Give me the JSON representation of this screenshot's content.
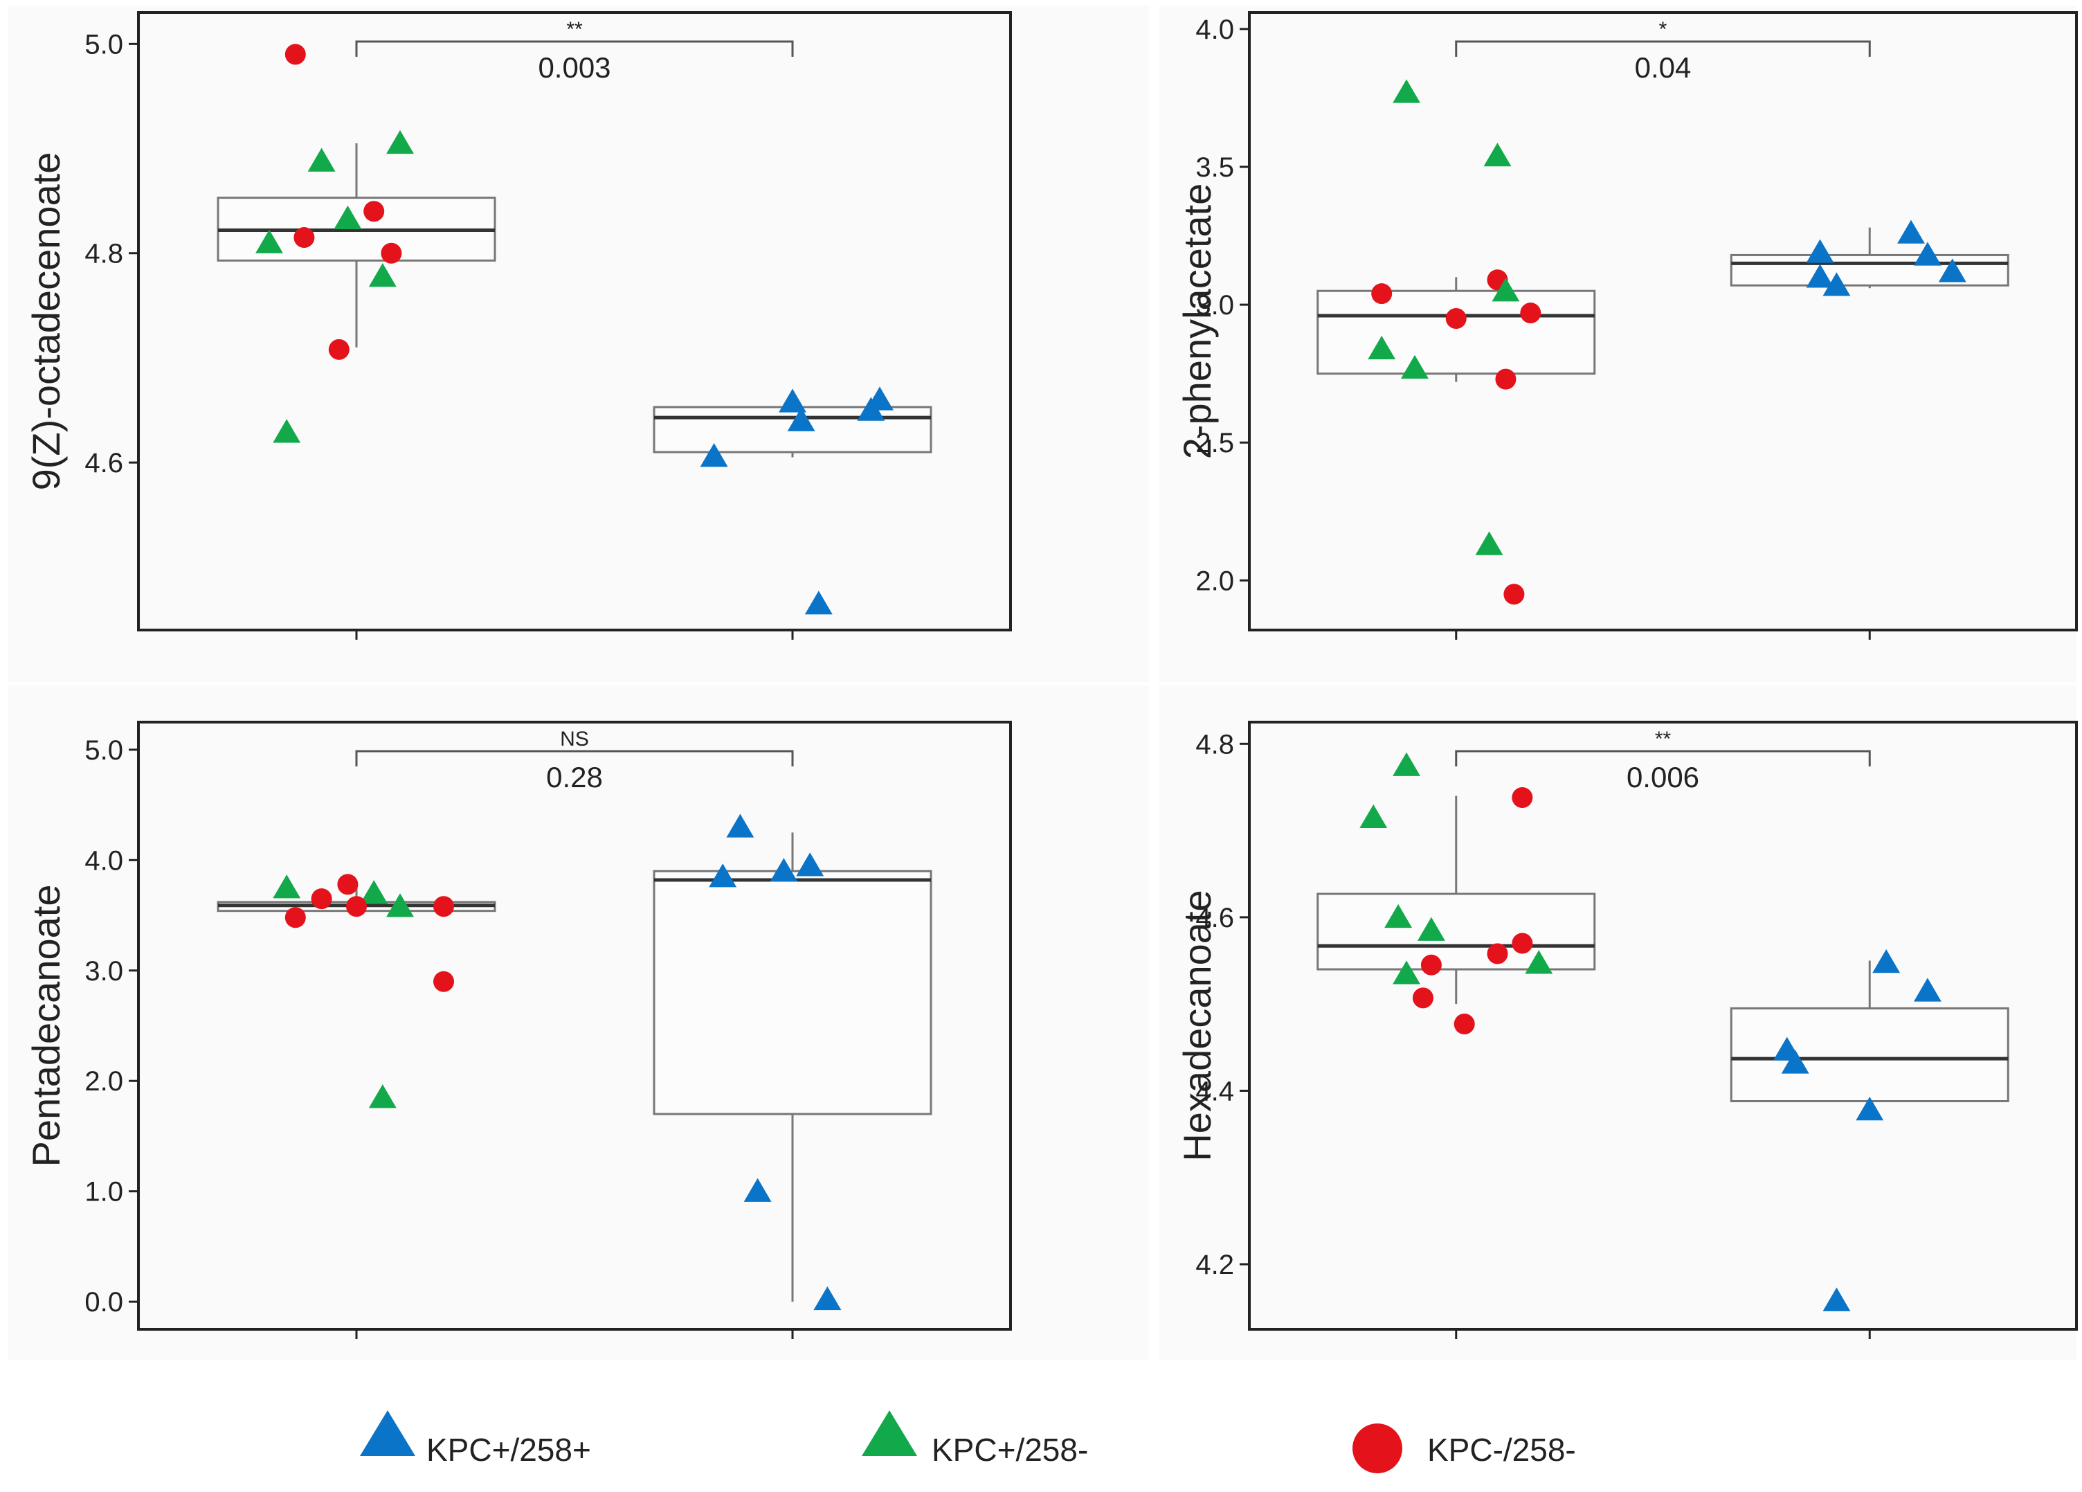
{
  "colors": {
    "KPC+/258+": "#0a74c8",
    "KPC+/258-": "#12a94b",
    "KPC-/258-": "#e3121b",
    "axis": "#222222",
    "box": "#777777",
    "median": "#333333",
    "panel_bg": "#fafafa"
  },
  "legend": {
    "items": [
      {
        "label": "KPC+/258+",
        "shape": "triangle",
        "color": "#0a74c8"
      },
      {
        "label": "KPC+/258-",
        "shape": "triangle",
        "color": "#12a94b"
      },
      {
        "label": "KPC-/258-",
        "shape": "circle",
        "color": "#e3121b"
      }
    ]
  },
  "chart_data": [
    {
      "type": "box-scatter",
      "ylabel": "9(Z)-octadecenoate",
      "ylim": [
        4.44,
        5.03
      ],
      "yticks": [
        4.6,
        4.8,
        5.0
      ],
      "tick_labels": [
        "4.6",
        "4.8",
        "5.0"
      ],
      "comparison": {
        "p_value": "0.003",
        "significance": "**"
      },
      "boxes": [
        {
          "group": 1,
          "q1": 4.793,
          "median": 4.822,
          "q3": 4.853,
          "whisker_low": 4.71,
          "whisker_high": 4.905
        },
        {
          "group": 2,
          "q1": 4.61,
          "median": 4.643,
          "q3": 4.653,
          "whisker_low": 4.605,
          "whisker_high": 4.66
        }
      ],
      "points": [
        {
          "group": 1,
          "jitter": -0.07,
          "y": 4.99,
          "class": "KPC-/258-"
        },
        {
          "group": 1,
          "jitter": 0.05,
          "y": 4.905,
          "class": "KPC+/258-"
        },
        {
          "group": 1,
          "jitter": -0.04,
          "y": 4.888,
          "class": "KPC+/258-"
        },
        {
          "group": 1,
          "jitter": 0.02,
          "y": 4.84,
          "class": "KPC-/258-"
        },
        {
          "group": 1,
          "jitter": -0.01,
          "y": 4.833,
          "class": "KPC+/258-"
        },
        {
          "group": 1,
          "jitter": -0.06,
          "y": 4.815,
          "class": "KPC-/258-"
        },
        {
          "group": 1,
          "jitter": -0.1,
          "y": 4.81,
          "class": "KPC+/258-"
        },
        {
          "group": 1,
          "jitter": 0.04,
          "y": 4.8,
          "class": "KPC-/258-"
        },
        {
          "group": 1,
          "jitter": 0.03,
          "y": 4.778,
          "class": "KPC+/258-"
        },
        {
          "group": 1,
          "jitter": -0.02,
          "y": 4.708,
          "class": "KPC-/258-"
        },
        {
          "group": 1,
          "jitter": -0.08,
          "y": 4.629,
          "class": "KPC+/258-"
        },
        {
          "group": 2,
          "jitter": 0.1,
          "y": 4.66,
          "class": "KPC+/258+"
        },
        {
          "group": 2,
          "jitter": 0.0,
          "y": 4.658,
          "class": "KPC+/258+"
        },
        {
          "group": 2,
          "jitter": 0.09,
          "y": 4.65,
          "class": "KPC+/258+"
        },
        {
          "group": 2,
          "jitter": 0.01,
          "y": 4.64,
          "class": "KPC+/258+"
        },
        {
          "group": 2,
          "jitter": -0.09,
          "y": 4.606,
          "class": "KPC+/258+"
        },
        {
          "group": 2,
          "jitter": 0.03,
          "y": 4.465,
          "class": "KPC+/258+"
        }
      ]
    },
    {
      "type": "box-scatter",
      "ylabel": "2-phenylacetate",
      "ylim": [
        1.82,
        4.06
      ],
      "yticks": [
        2.0,
        2.5,
        3.0,
        3.5,
        4.0
      ],
      "tick_labels": [
        "2.0",
        "2.5",
        "3.0",
        "3.5",
        "4.0"
      ],
      "comparison": {
        "p_value": "0.04",
        "significance": "*"
      },
      "boxes": [
        {
          "group": 1,
          "q1": 2.75,
          "median": 2.96,
          "q3": 3.05,
          "whisker_low": 2.72,
          "whisker_high": 3.1
        },
        {
          "group": 2,
          "q1": 3.07,
          "median": 3.15,
          "q3": 3.18,
          "whisker_low": 3.06,
          "whisker_high": 3.28
        }
      ],
      "points": [
        {
          "group": 1,
          "jitter": -0.06,
          "y": 3.77,
          "class": "KPC+/258-"
        },
        {
          "group": 1,
          "jitter": 0.05,
          "y": 3.54,
          "class": "KPC+/258-"
        },
        {
          "group": 1,
          "jitter": 0.05,
          "y": 3.09,
          "class": "KPC-/258-"
        },
        {
          "group": 1,
          "jitter": 0.06,
          "y": 3.05,
          "class": "KPC+/258-"
        },
        {
          "group": 1,
          "jitter": -0.09,
          "y": 3.04,
          "class": "KPC-/258-"
        },
        {
          "group": 1,
          "jitter": 0.09,
          "y": 2.97,
          "class": "KPC-/258-"
        },
        {
          "group": 1,
          "jitter": 0.0,
          "y": 2.95,
          "class": "KPC-/258-"
        },
        {
          "group": 1,
          "jitter": -0.09,
          "y": 2.84,
          "class": "KPC+/258-"
        },
        {
          "group": 1,
          "jitter": -0.05,
          "y": 2.77,
          "class": "KPC+/258-"
        },
        {
          "group": 1,
          "jitter": 0.06,
          "y": 2.73,
          "class": "KPC-/258-"
        },
        {
          "group": 1,
          "jitter": 0.04,
          "y": 2.13,
          "class": "KPC+/258-"
        },
        {
          "group": 1,
          "jitter": 0.07,
          "y": 1.95,
          "class": "KPC-/258-"
        },
        {
          "group": 2,
          "jitter": 0.05,
          "y": 3.26,
          "class": "KPC+/258+"
        },
        {
          "group": 2,
          "jitter": -0.06,
          "y": 3.19,
          "class": "KPC+/258+"
        },
        {
          "group": 2,
          "jitter": 0.07,
          "y": 3.18,
          "class": "KPC+/258+"
        },
        {
          "group": 2,
          "jitter": 0.1,
          "y": 3.12,
          "class": "KPC+/258+"
        },
        {
          "group": 2,
          "jitter": -0.06,
          "y": 3.1,
          "class": "KPC+/258+"
        },
        {
          "group": 2,
          "jitter": -0.04,
          "y": 3.07,
          "class": "KPC+/258+"
        }
      ]
    },
    {
      "type": "box-scatter",
      "ylabel": "Pentadecanoate",
      "ylim": [
        -0.25,
        5.25
      ],
      "yticks": [
        0.0,
        1.0,
        2.0,
        3.0,
        4.0,
        5.0
      ],
      "tick_labels": [
        "0.0",
        "1.0",
        "2.0",
        "3.0",
        "4.0",
        "5.0"
      ],
      "comparison": {
        "p_value": "0.28",
        "significance": "NS"
      },
      "boxes": [
        {
          "group": 1,
          "q1": 3.54,
          "median": 3.59,
          "q3": 3.62,
          "whisker_low": 3.5,
          "whisker_high": 3.75
        },
        {
          "group": 2,
          "q1": 1.7,
          "median": 3.82,
          "q3": 3.9,
          "whisker_low": 0.0,
          "whisker_high": 4.25
        }
      ],
      "points": [
        {
          "group": 1,
          "jitter": -0.08,
          "y": 3.75,
          "class": "KPC+/258-"
        },
        {
          "group": 1,
          "jitter": -0.01,
          "y": 3.78,
          "class": "KPC-/258-"
        },
        {
          "group": 1,
          "jitter": 0.02,
          "y": 3.7,
          "class": "KPC+/258-"
        },
        {
          "group": 1,
          "jitter": -0.04,
          "y": 3.65,
          "class": "KPC-/258-"
        },
        {
          "group": 1,
          "jitter": 0.0,
          "y": 3.58,
          "class": "KPC-/258-"
        },
        {
          "group": 1,
          "jitter": 0.05,
          "y": 3.58,
          "class": "KPC+/258-"
        },
        {
          "group": 1,
          "jitter": 0.1,
          "y": 3.58,
          "class": "KPC-/258-"
        },
        {
          "group": 1,
          "jitter": -0.07,
          "y": 3.48,
          "class": "KPC-/258-"
        },
        {
          "group": 1,
          "jitter": 0.1,
          "y": 2.9,
          "class": "KPC-/258-"
        },
        {
          "group": 1,
          "jitter": 0.03,
          "y": 1.85,
          "class": "KPC+/258-"
        },
        {
          "group": 2,
          "jitter": -0.06,
          "y": 4.3,
          "class": "KPC+/258+"
        },
        {
          "group": 2,
          "jitter": 0.02,
          "y": 3.95,
          "class": "KPC+/258+"
        },
        {
          "group": 2,
          "jitter": -0.01,
          "y": 3.9,
          "class": "KPC+/258+"
        },
        {
          "group": 2,
          "jitter": -0.08,
          "y": 3.85,
          "class": "KPC+/258+"
        },
        {
          "group": 2,
          "jitter": -0.04,
          "y": 1.0,
          "class": "KPC+/258+"
        },
        {
          "group": 2,
          "jitter": 0.04,
          "y": 0.02,
          "class": "KPC+/258+"
        }
      ]
    },
    {
      "type": "box-scatter",
      "ylabel": "Hexadecanoate",
      "ylim": [
        4.125,
        4.825
      ],
      "yticks": [
        4.2,
        4.4,
        4.6,
        4.8
      ],
      "tick_labels": [
        "4.2",
        "4.4",
        "4.6",
        "4.8"
      ],
      "comparison": {
        "p_value": "0.006",
        "significance": "**"
      },
      "boxes": [
        {
          "group": 1,
          "q1": 4.54,
          "median": 4.567,
          "q3": 4.627,
          "whisker_low": 4.5,
          "whisker_high": 4.74
        },
        {
          "group": 2,
          "q1": 4.388,
          "median": 4.437,
          "q3": 4.495,
          "whisker_low": 4.38,
          "whisker_high": 4.55
        }
      ],
      "points": [
        {
          "group": 1,
          "jitter": -0.06,
          "y": 4.775,
          "class": "KPC+/258-"
        },
        {
          "group": 1,
          "jitter": 0.08,
          "y": 4.738,
          "class": "KPC-/258-"
        },
        {
          "group": 1,
          "jitter": -0.1,
          "y": 4.715,
          "class": "KPC+/258-"
        },
        {
          "group": 1,
          "jitter": -0.07,
          "y": 4.6,
          "class": "KPC+/258-"
        },
        {
          "group": 1,
          "jitter": -0.03,
          "y": 4.585,
          "class": "KPC+/258-"
        },
        {
          "group": 1,
          "jitter": 0.08,
          "y": 4.57,
          "class": "KPC-/258-"
        },
        {
          "group": 1,
          "jitter": 0.05,
          "y": 4.558,
          "class": "KPC-/258-"
        },
        {
          "group": 1,
          "jitter": 0.1,
          "y": 4.547,
          "class": "KPC+/258-"
        },
        {
          "group": 1,
          "jitter": -0.03,
          "y": 4.545,
          "class": "KPC-/258-"
        },
        {
          "group": 1,
          "jitter": -0.06,
          "y": 4.535,
          "class": "KPC+/258-"
        },
        {
          "group": 1,
          "jitter": -0.04,
          "y": 4.507,
          "class": "KPC-/258-"
        },
        {
          "group": 1,
          "jitter": 0.01,
          "y": 4.477,
          "class": "KPC-/258-"
        },
        {
          "group": 2,
          "jitter": 0.02,
          "y": 4.548,
          "class": "KPC+/258+"
        },
        {
          "group": 2,
          "jitter": 0.07,
          "y": 4.515,
          "class": "KPC+/258+"
        },
        {
          "group": 2,
          "jitter": -0.1,
          "y": 4.447,
          "class": "KPC+/258+"
        },
        {
          "group": 2,
          "jitter": -0.09,
          "y": 4.432,
          "class": "KPC+/258+"
        },
        {
          "group": 2,
          "jitter": 0.0,
          "y": 4.378,
          "class": "KPC+/258+"
        },
        {
          "group": 2,
          "jitter": -0.04,
          "y": 4.158,
          "class": "KPC+/258+"
        }
      ]
    }
  ]
}
